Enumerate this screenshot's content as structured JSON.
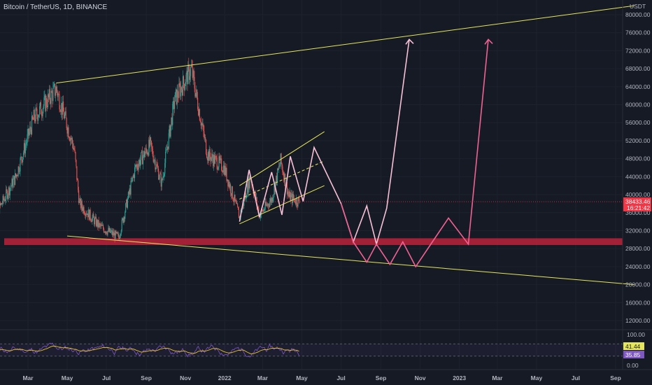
{
  "header": {
    "title": "Bitcoin / TetherUS, 1D, BINANCE",
    "currency": "USDT"
  },
  "colors": {
    "background": "#161a25",
    "up_candle": "#26a69a",
    "down_candle": "#ef5350",
    "trendline": "#e6e65c",
    "support_zone": "#b2223a",
    "projection_light": "#f7c1d6",
    "projection_pink": "#f06292",
    "rsi_line": "#7e57c2",
    "rsi_ma": "#e6c229",
    "price_badge": "#f23645"
  },
  "price_axis": {
    "ticks": [
      "80000.00",
      "76000.00",
      "72000.00",
      "68000.00",
      "64000.00",
      "60000.00",
      "56000.00",
      "52000.00",
      "48000.00",
      "44000.00",
      "40000.00",
      "36000.00",
      "32000.00",
      "28000.00",
      "24000.00",
      "20000.00",
      "16000.00",
      "12000.00"
    ],
    "current_price": "38433.46",
    "countdown": "16:21:42"
  },
  "time_axis": {
    "ticks": [
      "Mar",
      "May",
      "Jul",
      "Sep",
      "Nov",
      "2022",
      "Mar",
      "May",
      "Jul",
      "Sep",
      "Nov",
      "2023",
      "Mar",
      "May",
      "Jul",
      "Sep"
    ]
  },
  "rsi": {
    "ticks": [
      "100.00",
      "0.00"
    ],
    "rsi_value": "35.85",
    "rsi_ma_value": "41.44"
  },
  "chart_data": {
    "type": "candlestick",
    "symbol": "BTCUSDT",
    "interval": "1D",
    "exchange": "BINANCE",
    "ylim": [
      9000,
      82000
    ],
    "current_price": 38433.46,
    "support_zone": [
      28800,
      30300
    ],
    "monthly_close_path": [
      {
        "date": "2021-01-01",
        "price": 33000
      },
      {
        "date": "2021-02-10",
        "price": 44000
      },
      {
        "date": "2021-03-10",
        "price": 57000
      },
      {
        "date": "2021-04-14",
        "price": 63500
      },
      {
        "date": "2021-05-12",
        "price": 50000
      },
      {
        "date": "2021-05-20",
        "price": 38000
      },
      {
        "date": "2021-06-20",
        "price": 33000
      },
      {
        "date": "2021-07-20",
        "price": 30500
      },
      {
        "date": "2021-08-15",
        "price": 46000
      },
      {
        "date": "2021-09-07",
        "price": 51000
      },
      {
        "date": "2021-09-25",
        "price": 42500
      },
      {
        "date": "2021-10-15",
        "price": 61000
      },
      {
        "date": "2021-11-10",
        "price": 68000
      },
      {
        "date": "2021-12-05",
        "price": 49000
      },
      {
        "date": "2021-12-31",
        "price": 46000
      },
      {
        "date": "2022-01-24",
        "price": 35000
      },
      {
        "date": "2022-02-10",
        "price": 44000
      },
      {
        "date": "2022-02-24",
        "price": 35500
      },
      {
        "date": "2022-03-15",
        "price": 39000
      },
      {
        "date": "2022-03-29",
        "price": 47500
      },
      {
        "date": "2022-04-11",
        "price": 39500
      },
      {
        "date": "2022-04-27",
        "price": 38433
      }
    ],
    "trendlines": [
      {
        "name": "upper",
        "points": [
          [
            "2021-04-14",
            64800
          ],
          [
            "2023-09-30",
            82000
          ]
        ]
      },
      {
        "name": "lower",
        "points": [
          [
            "2021-05-01",
            30800
          ],
          [
            "2023-09-30",
            20000
          ]
        ]
      },
      {
        "name": "channel-top",
        "points": [
          [
            "2022-01-24",
            42000
          ],
          [
            "2022-06-05",
            54000
          ]
        ]
      },
      {
        "name": "channel-mid",
        "points": [
          [
            "2022-01-24",
            39000
          ],
          [
            "2022-06-05",
            47500
          ]
        ]
      },
      {
        "name": "channel-bottom",
        "points": [
          [
            "2022-01-24",
            33500
          ],
          [
            "2022-06-05",
            42000
          ]
        ]
      }
    ],
    "projection_paths": [
      {
        "color": "light",
        "points": [
          [
            "2022-01-24",
            34000
          ],
          [
            "2022-02-08",
            45500
          ],
          [
            "2022-02-24",
            35000
          ],
          [
            "2022-03-15",
            45000
          ],
          [
            "2022-03-31",
            35500
          ],
          [
            "2022-04-13",
            48500
          ],
          [
            "2022-05-03",
            38500
          ],
          [
            "2022-05-20",
            50500
          ],
          [
            "2022-07-01",
            38000
          ],
          [
            "2022-07-20",
            29500
          ],
          [
            "2022-08-10",
            37500
          ],
          [
            "2022-08-25",
            29000
          ],
          [
            "2022-09-10",
            37000
          ],
          [
            "2022-10-15",
            74500
          ]
        ]
      },
      {
        "color": "pink",
        "points": [
          [
            "2022-07-01",
            38000
          ],
          [
            "2022-07-20",
            29500
          ],
          [
            "2022-08-10",
            25000
          ],
          [
            "2022-08-25",
            29000
          ],
          [
            "2022-09-15",
            24500
          ],
          [
            "2022-10-05",
            29500
          ],
          [
            "2022-10-25",
            24000
          ],
          [
            "2022-11-20",
            29500
          ],
          [
            "2022-12-15",
            34800
          ],
          [
            "2023-01-15",
            29000
          ],
          [
            "2023-02-15",
            74500
          ]
        ]
      }
    ],
    "rsi": {
      "value": 35.85,
      "ma": 41.44,
      "ylim": [
        0,
        100
      ],
      "bands": [
        30,
        70
      ]
    }
  }
}
